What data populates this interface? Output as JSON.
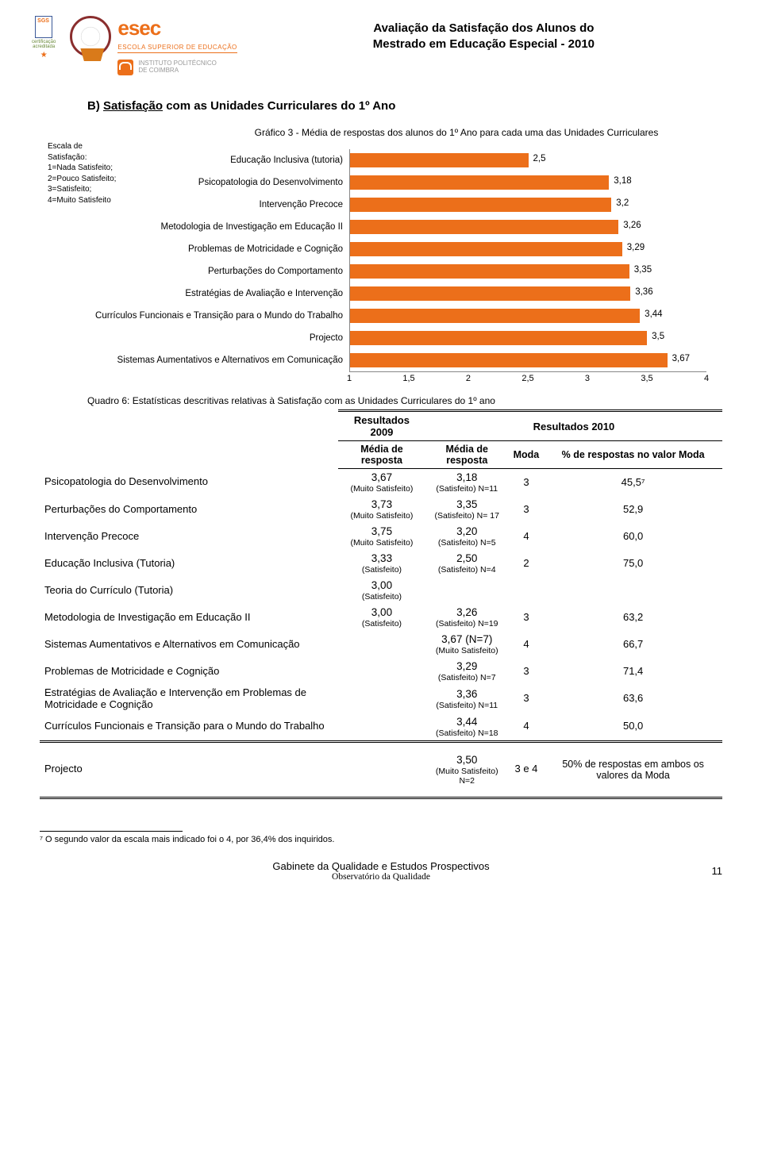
{
  "header": {
    "title_l1": "Avaliação da Satisfação dos Alunos do",
    "title_l2": "Mestrado em Educação Especial - 2010",
    "esec": "esec",
    "esec_sub": "ESCOLA SUPERIOR DE EDUCAÇÃO",
    "ipc": "INSTITUTO POLITÉCNICO\nDE COIMBRA",
    "cert_l1": "certificação",
    "cert_l2": "acreditada"
  },
  "section_title_prefix": "B) ",
  "section_title_underline": "Satisfação",
  "section_title_suffix": " com as Unidades Curriculares do 1º Ano",
  "chart": {
    "title": "Gráfico 3 - Média de respostas dos alunos do 1º Ano para cada uma das Unidades Curriculares",
    "escala": {
      "t": "Escala de",
      "s": "Satisfação:",
      "l1": "1=Nada Satisfeito;",
      "l2": "2=Pouco Satisfeito;",
      "l3": "3=Satisfeito;",
      "l4": "4=Muito Satisfeito"
    },
    "xmin": 1,
    "xmax": 4,
    "ticks": [
      "1",
      "1,5",
      "2",
      "2,5",
      "3",
      "3,5",
      "4"
    ],
    "bar_color": "#ec6f1a",
    "bar_border": "#ec6f1a",
    "rows": [
      {
        "label": "Educação Inclusiva (tutoria)",
        "value": 2.5,
        "text": "2,5"
      },
      {
        "label": "Psicopatologia do Desenvolvimento",
        "value": 3.18,
        "text": "3,18"
      },
      {
        "label": "Intervenção Precoce",
        "value": 3.2,
        "text": "3,2"
      },
      {
        "label": "Metodologia de Investigação em Educação II",
        "value": 3.26,
        "text": "3,26"
      },
      {
        "label": "Problemas de Motricidade e Cognição",
        "value": 3.29,
        "text": "3,29"
      },
      {
        "label": "Perturbações do Comportamento",
        "value": 3.35,
        "text": "3,35"
      },
      {
        "label": "Estratégias de Avaliação e Intervenção",
        "value": 3.36,
        "text": "3,36"
      },
      {
        "label": "Currículos Funcionais e Transição para o Mundo do Trabalho",
        "value": 3.44,
        "text": "3,44"
      },
      {
        "label": "Projecto",
        "value": 3.5,
        "text": "3,5"
      },
      {
        "label": "Sistemas Aumentativos e Alternativos em Comunicação",
        "value": 3.67,
        "text": "3,67"
      }
    ]
  },
  "quadro_caption": "Quadro 6: Estatísticas descritivas relativas à Satisfação com as Unidades Curriculares do 1º ano",
  "table": {
    "grp2009": "Resultados 2009",
    "grp2010": "Resultados 2010",
    "h_media": "Média de resposta",
    "h_moda": "Moda",
    "h_pct": "% de respostas no valor Moda",
    "rows": [
      {
        "name": "Psicopatologia do Desenvolvimento",
        "r09": "3,67",
        "r09s": "(Muito Satisfeito)",
        "r10": "3,18",
        "r10s": "(Satisfeito) N=11",
        "moda": "3",
        "pct": "45,5⁷"
      },
      {
        "name": "Perturbações do Comportamento",
        "r09": "3,73",
        "r09s": "(Muito Satisfeito)",
        "r10": "3,35",
        "r10s": "(Satisfeito) N= 17",
        "moda": "3",
        "pct": "52,9"
      },
      {
        "name": "Intervenção Precoce",
        "r09": "3,75",
        "r09s": "(Muito Satisfeito)",
        "r10": "3,20",
        "r10s": "(Satisfeito) N=5",
        "moda": "4",
        "pct": "60,0"
      },
      {
        "name": "Educação Inclusiva (Tutoria)",
        "r09": "3,33",
        "r09s": "(Satisfeito)",
        "r10": "2,50",
        "r10s": "(Satisfeito) N=4",
        "moda": "2",
        "pct": "75,0"
      },
      {
        "name": "Teoria do Currículo (Tutoria)",
        "r09": "3,00",
        "r09s": "(Satisfeito)",
        "r10": "",
        "r10s": "",
        "moda": "",
        "pct": ""
      },
      {
        "name": "Metodologia de Investigação em Educação II",
        "r09": "3,00",
        "r09s": "(Satisfeito)",
        "r10": "3,26",
        "r10s": "(Satisfeito) N=19",
        "moda": "3",
        "pct": "63,2"
      },
      {
        "name": "Sistemas Aumentativos e Alternativos em Comunicação",
        "r09": "",
        "r09s": "",
        "r10": "3,67 (N=7)",
        "r10s": "(Muito Satisfeito)",
        "moda": "4",
        "pct": "66,7"
      },
      {
        "name": "Problemas de Motricidade e Cognição",
        "r09": "",
        "r09s": "",
        "r10": "3,29",
        "r10s": "(Satisfeito) N=7",
        "moda": "3",
        "pct": "71,4"
      },
      {
        "name": "Estratégias de Avaliação e Intervenção em Problemas de Motricidade e Cognição",
        "r09": "",
        "r09s": "",
        "r10": "3,36",
        "r10s": "(Satisfeito) N=11",
        "moda": "3",
        "pct": "63,6"
      },
      {
        "name": "Currículos Funcionais e Transição para o Mundo do Trabalho",
        "r09": "",
        "r09s": "",
        "r10": "3,44",
        "r10s": "(Satisfeito) N=18",
        "moda": "4",
        "pct": "50,0"
      }
    ],
    "proj": {
      "name": "Projecto",
      "r10": "3,50",
      "r10s": "(Muito Satisfeito)",
      "r10n": "N=2",
      "moda": "3 e 4",
      "pct": "50% de respostas em ambos os valores da Moda"
    }
  },
  "footnote": "⁷ O segundo valor da escala mais indicado foi o 4, por 36,4% dos inquiridos.",
  "footer": {
    "l1": "Gabinete da Qualidade e Estudos Prospectivos",
    "l2": "Observatório da Qualidade",
    "pg": "11"
  }
}
